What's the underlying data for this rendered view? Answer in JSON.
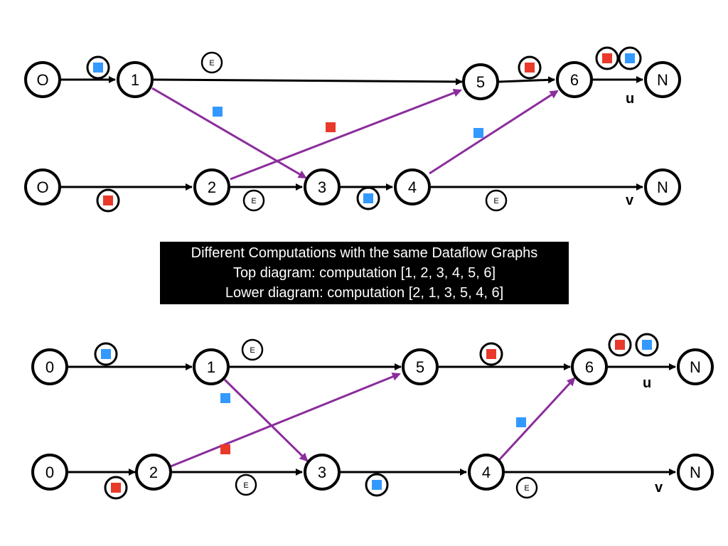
{
  "colors": {
    "black_edge": "#000000",
    "cross_edge": "#8B2D9C",
    "token_blue": "#3399FF",
    "token_red": "#E8392A"
  },
  "tokens": {
    "blue": "blue-token",
    "red": "red-token"
  },
  "caption": {
    "line1": "Different Computations with the same Dataflow Graphs",
    "line2": "Top diagram: computation [1, 2, 3, 4, 5, 6]",
    "line3": "Lower diagram: computation [2, 1, 3, 5, 4, 6]"
  },
  "top_diagram": {
    "nodes": {
      "source_top": "O",
      "source_bottom": "O",
      "n1": "1",
      "n2": "2",
      "n3": "3",
      "n4": "4",
      "n5": "5",
      "n6": "6",
      "sink_top": "N",
      "sink_bottom": "N"
    },
    "e_markers": [
      "E",
      "E",
      "E"
    ],
    "outputs": {
      "top": "u",
      "bottom": "v"
    }
  },
  "bottom_diagram": {
    "nodes": {
      "source_top": "0",
      "source_bottom": "0",
      "n1": "1",
      "n2": "2",
      "n3": "3",
      "n4": "4",
      "n5": "5",
      "n6": "6",
      "sink_top": "N",
      "sink_bottom": "N"
    },
    "e_markers": [
      "E",
      "E",
      "E"
    ],
    "outputs": {
      "top": "u",
      "bottom": "v"
    }
  }
}
